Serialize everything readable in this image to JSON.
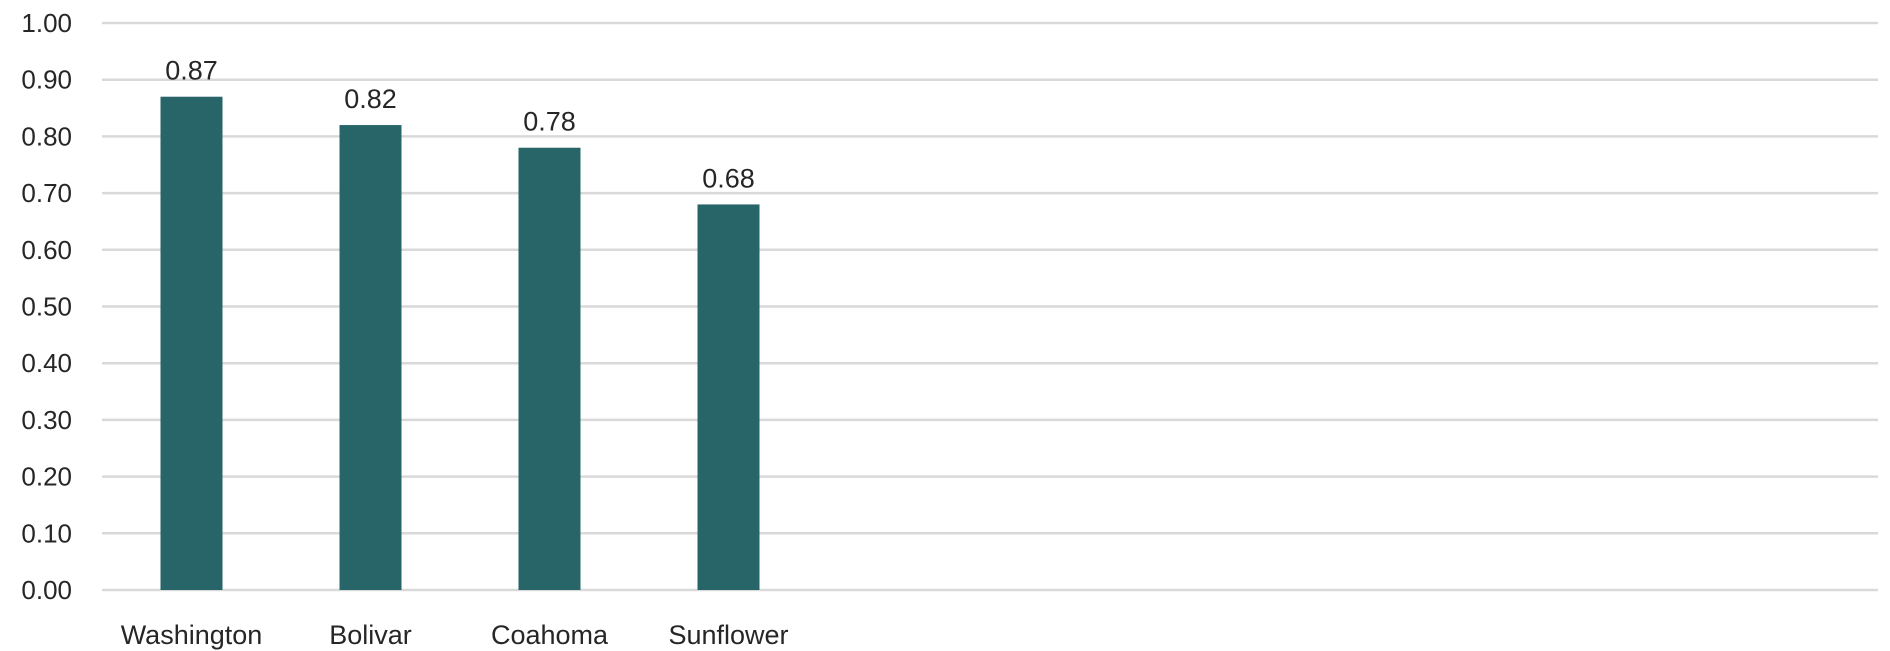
{
  "chart_data": {
    "type": "bar",
    "categories": [
      "Washington",
      "Bolivar",
      "Coahoma",
      "Sunflower"
    ],
    "values": [
      0.87,
      0.82,
      0.78,
      0.68
    ],
    "data_labels": [
      "0.87",
      "0.82",
      "0.78",
      "0.68"
    ],
    "ylim": [
      0,
      1.0
    ],
    "yticks": [
      0.0,
      0.1,
      0.2,
      0.3,
      0.4,
      0.5,
      0.6,
      0.7,
      0.8,
      0.9,
      1.0
    ],
    "ytick_labels": [
      "0.00",
      "0.10",
      "0.20",
      "0.30",
      "0.40",
      "0.50",
      "0.60",
      "0.70",
      "0.80",
      "0.90",
      "1.00"
    ],
    "title": "",
    "xlabel": "",
    "ylabel": "",
    "grid": true,
    "legend": "none",
    "bar_color": "#276569",
    "grid_color": "#d9d9d9",
    "text_color": "#262626"
  }
}
